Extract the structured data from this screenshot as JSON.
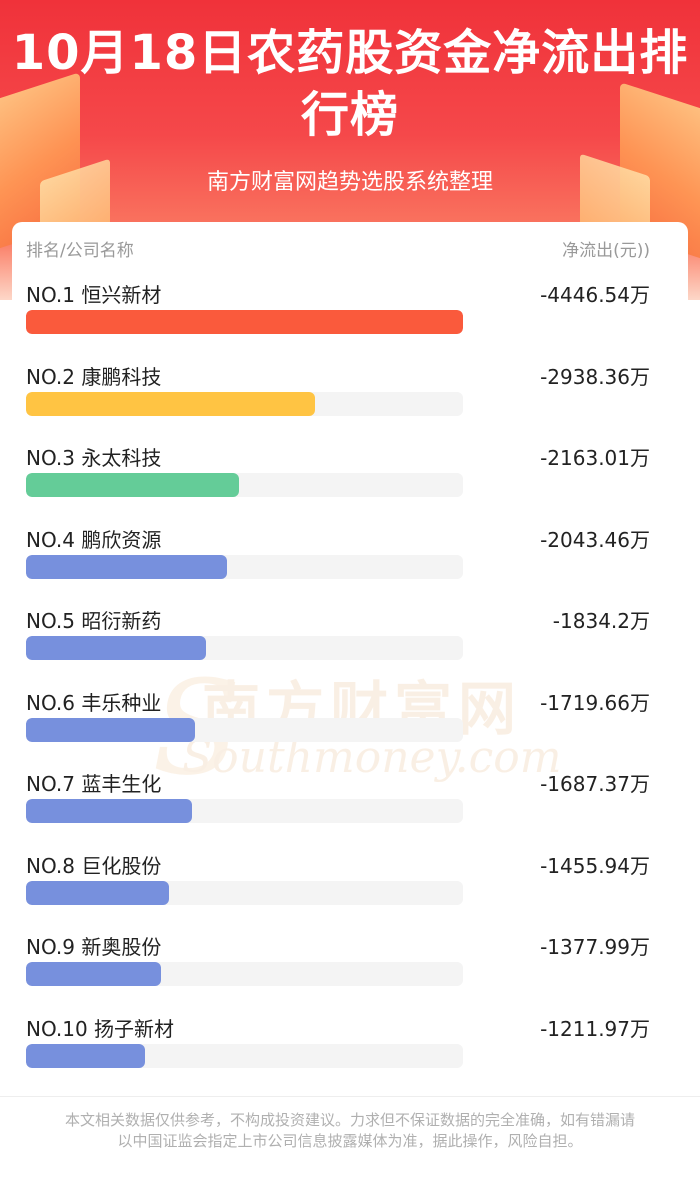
{
  "header": {
    "title": "10月18日农药股资金净流出排行榜",
    "subtitle": "南方财富网趋势选股系统整理"
  },
  "table": {
    "col_left": "排名/公司名称",
    "col_right": "净流出(元))"
  },
  "watermark": {
    "cn": "南方财富网",
    "en": "Southmoney.com"
  },
  "chart_data": {
    "type": "bar",
    "orientation": "horizontal",
    "unit": "万",
    "categories": [
      "NO.1 恒兴新材",
      "NO.2 康鹏科技",
      "NO.3 永太科技",
      "NO.4 鹏欣资源",
      "NO.5 昭衍新药",
      "NO.6 丰乐种业",
      "NO.7 蓝丰生化",
      "NO.8 巨化股份",
      "NO.9 新奥股份",
      "NO.10 扬子新材"
    ],
    "values": [
      -4446.54,
      -2938.36,
      -2163.01,
      -2043.46,
      -1834.2,
      -1719.66,
      -1687.37,
      -1455.94,
      -1377.99,
      -1211.97
    ],
    "value_labels": [
      "-4446.54万",
      "-2938.36万",
      "-2163.01万",
      "-2043.46万",
      "-1834.2万",
      "-1719.66万",
      "-1687.37万",
      "-1455.94万",
      "-1377.99万",
      "-1211.97万"
    ],
    "bar_colors": [
      "#fa5a3c",
      "#ffc443",
      "#64cc98",
      "#7790dd",
      "#7790dd",
      "#7790dd",
      "#7790dd",
      "#7790dd",
      "#7790dd",
      "#7790dd"
    ],
    "track_color": "#f4f4f4"
  },
  "footer": {
    "disclaimer": "本文相关数据仅供参考，不构成投资建议。力求但不保证数据的完全准确，如有错漏请以中国证监会指定上市公司信息披露媒体为准，据此操作，风险自担。"
  }
}
